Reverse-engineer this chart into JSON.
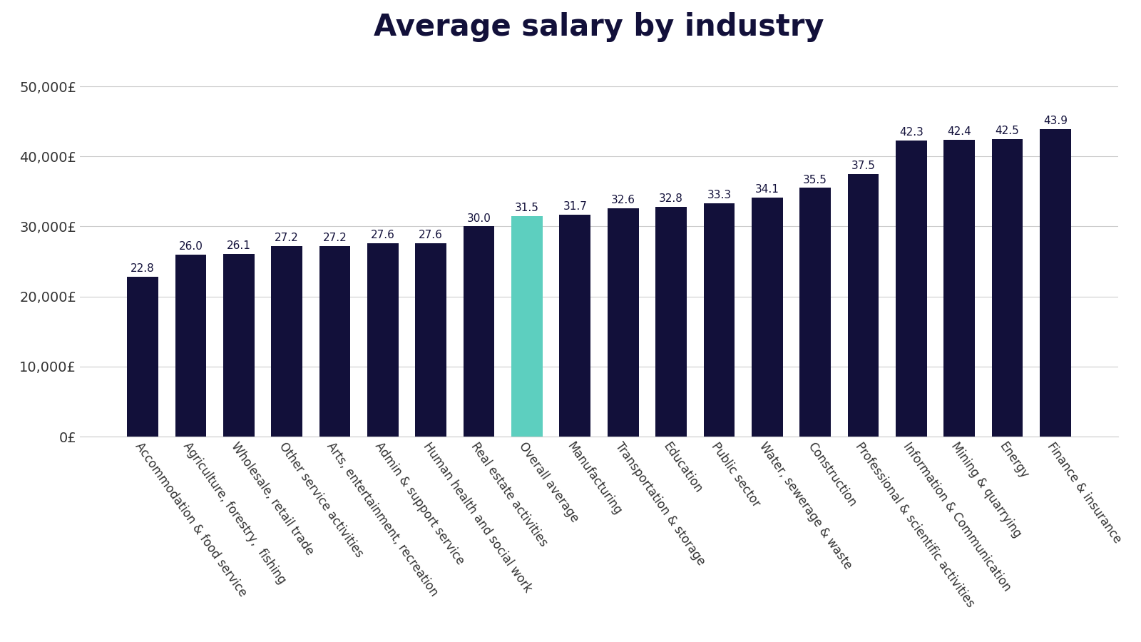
{
  "title": "Average salary by industry",
  "categories": [
    "Accommodation & food service",
    "Agriculture, forestry,  fishing",
    "Wholesale, retail trade",
    "Other service activities",
    "Arts, entertainment, recreation",
    "Admin & support service",
    "Human health and social work",
    "Real estate activities",
    "Overall average",
    "Manufacturing",
    "Transportation & storage",
    "Education",
    "Public sector",
    "Water, sewerage & waste",
    "Construction",
    "Professional & scientific activities",
    "Information & Communication",
    "Mining & quarrying",
    "Energy",
    "Finance & insurance"
  ],
  "values": [
    22800,
    26000,
    26100,
    27200,
    27200,
    27600,
    27600,
    30000,
    31500,
    31700,
    32600,
    32800,
    33300,
    34100,
    35500,
    37500,
    42300,
    42400,
    42500,
    43900
  ],
  "labels": [
    "22.8",
    "26.0",
    "26.1",
    "27.2",
    "27.2",
    "27.6",
    "27.6",
    "30.0",
    "31.5",
    "31.7",
    "32.6",
    "32.8",
    "33.3",
    "34.1",
    "35.5",
    "37.5",
    "42.3",
    "42.4",
    "42.5",
    "43.9"
  ],
  "bar_colors": [
    "#12103a",
    "#12103a",
    "#12103a",
    "#12103a",
    "#12103a",
    "#12103a",
    "#12103a",
    "#12103a",
    "#5dcfbf",
    "#12103a",
    "#12103a",
    "#12103a",
    "#12103a",
    "#12103a",
    "#12103a",
    "#12103a",
    "#12103a",
    "#12103a",
    "#12103a",
    "#12103a"
  ],
  "background_color": "#ffffff",
  "title_color": "#12103a",
  "title_fontsize": 30,
  "label_color": "#12103a",
  "label_fontsize": 11,
  "axis_label_color": "#333333",
  "ytick_label_color": "#333333",
  "tick_label_fontsize": 14,
  "xtick_label_fontsize": 12,
  "ylim": [
    0,
    55000
  ],
  "yticks": [
    0,
    10000,
    20000,
    30000,
    40000,
    50000
  ],
  "ytick_labels": [
    "0£",
    "10,000£",
    "20,000£",
    "30,000£",
    "40,000£",
    "50,000£"
  ],
  "grid_color": "#cccccc",
  "bar_width": 0.65,
  "xrotation": -55
}
